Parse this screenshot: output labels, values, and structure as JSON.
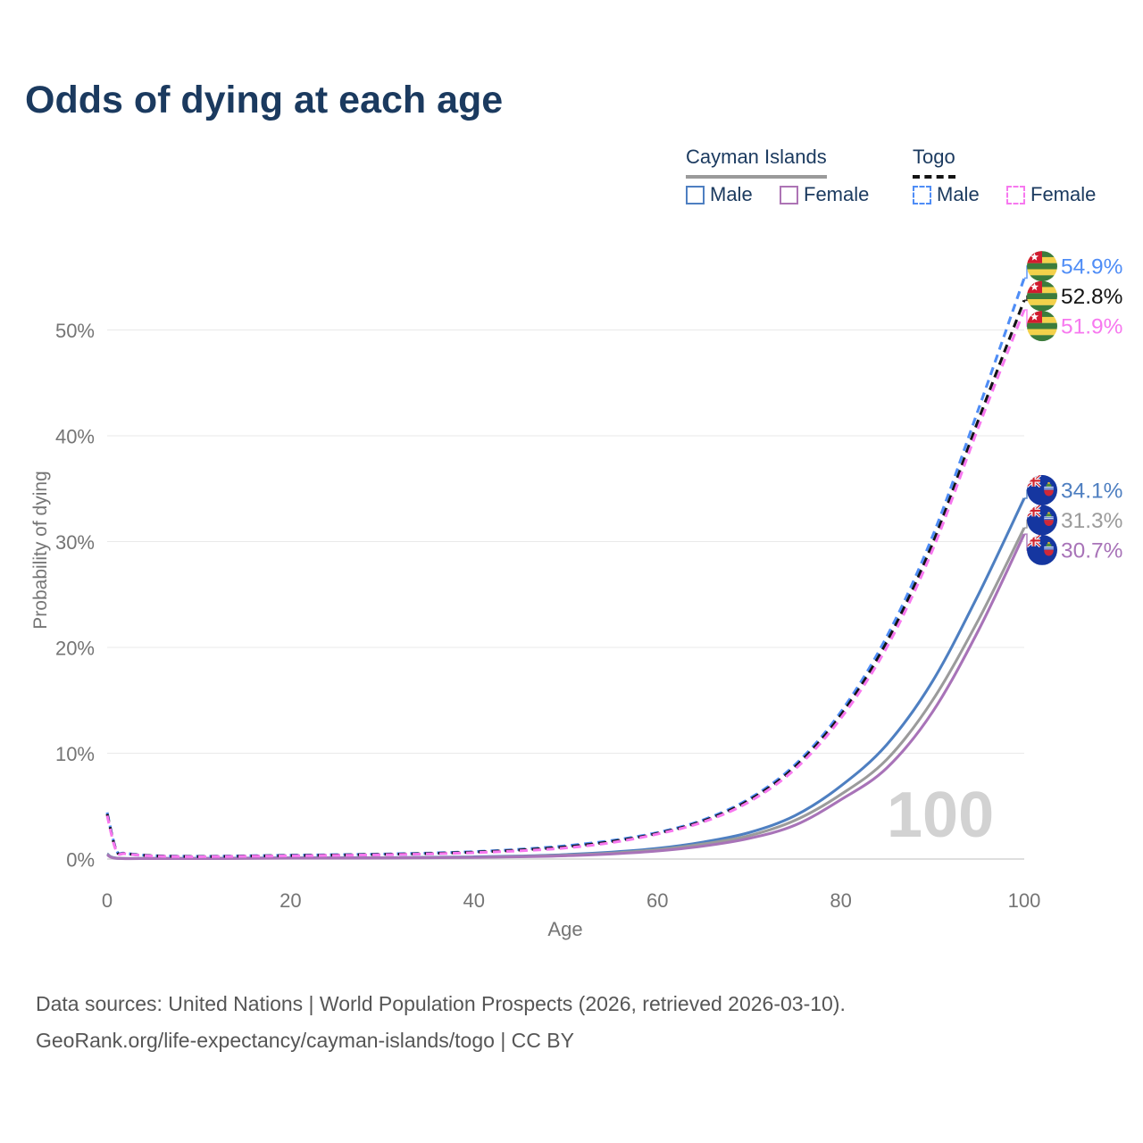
{
  "page": {
    "title": "Odds of dying at each age",
    "watermark": "100",
    "footer_line1": "Data sources: United Nations | World Population Prospects (2026, retrieved 2026-03-10).",
    "footer_line2": "GeoRank.org/life-expectancy/cayman-islands/togo | CC BY"
  },
  "colors": {
    "title_text": "#1b3a5f",
    "axis_text": "#757575",
    "grid": "#e9e9e9",
    "watermark": "#d2d2d2",
    "footer_text": "#565656"
  },
  "legend": {
    "groups": [
      {
        "label": "Cayman Islands",
        "underline": "solid",
        "underline_color": "#9a9a9a",
        "items": [
          {
            "label": "Male",
            "color": "#4e7fc1",
            "dashed": false
          },
          {
            "label": "Female",
            "color": "#ad74b5",
            "dashed": false
          }
        ]
      },
      {
        "label": "Togo",
        "underline": "dashed",
        "underline_color": "#141414",
        "items": [
          {
            "label": "Male",
            "color": "#4f8df6",
            "dashed": true
          },
          {
            "label": "Female",
            "color": "#f778ef",
            "dashed": true
          }
        ]
      }
    ]
  },
  "chart_data": {
    "type": "line",
    "title": "Odds of dying at each age",
    "xlabel": "Age",
    "ylabel": "Probability of dying",
    "xlim": [
      0,
      100
    ],
    "ylim": [
      0,
      57
    ],
    "x_ticks": [
      0,
      20,
      40,
      60,
      80,
      100
    ],
    "y_ticks": [
      0,
      10,
      20,
      30,
      40,
      50
    ],
    "y_tick_format": "%",
    "grid": "horizontal",
    "legend_position": "top-right",
    "age_indicator": "100",
    "series": [
      {
        "name": "Togo Male",
        "country": "Togo",
        "sex": "Male",
        "color": "#4f8df6",
        "dashed": true,
        "flag_icon": "togo-flag-icon",
        "end_label": "54.9%",
        "end_value": 54.9,
        "points": [
          [
            0,
            4.4
          ],
          [
            1,
            0.85
          ],
          [
            2,
            0.55
          ],
          [
            5,
            0.32
          ],
          [
            10,
            0.26
          ],
          [
            15,
            0.3
          ],
          [
            20,
            0.36
          ],
          [
            25,
            0.41
          ],
          [
            30,
            0.47
          ],
          [
            35,
            0.56
          ],
          [
            40,
            0.7
          ],
          [
            45,
            0.92
          ],
          [
            50,
            1.25
          ],
          [
            55,
            1.75
          ],
          [
            60,
            2.5
          ],
          [
            65,
            3.7
          ],
          [
            70,
            5.7
          ],
          [
            75,
            8.9
          ],
          [
            80,
            13.9
          ],
          [
            85,
            21.0
          ],
          [
            90,
            30.5
          ],
          [
            95,
            42.5
          ],
          [
            100,
            54.9
          ]
        ]
      },
      {
        "name": "Togo Both sexes",
        "country": "Togo",
        "sex": "Both",
        "color": "#141414",
        "dashed": true,
        "flag_icon": "togo-flag-icon",
        "end_label": "52.8%",
        "end_value": 52.8,
        "points": [
          [
            0,
            4.25
          ],
          [
            1,
            0.8
          ],
          [
            2,
            0.52
          ],
          [
            5,
            0.3
          ],
          [
            10,
            0.24
          ],
          [
            15,
            0.28
          ],
          [
            20,
            0.33
          ],
          [
            25,
            0.38
          ],
          [
            30,
            0.44
          ],
          [
            35,
            0.52
          ],
          [
            40,
            0.65
          ],
          [
            45,
            0.85
          ],
          [
            50,
            1.15
          ],
          [
            55,
            1.65
          ],
          [
            60,
            2.42
          ],
          [
            65,
            3.6
          ],
          [
            70,
            5.55
          ],
          [
            75,
            8.7
          ],
          [
            80,
            13.6
          ],
          [
            85,
            20.5
          ],
          [
            90,
            29.8
          ],
          [
            95,
            41.5
          ],
          [
            100,
            52.8
          ]
        ]
      },
      {
        "name": "Togo Female",
        "country": "Togo",
        "sex": "Female",
        "color": "#f778ef",
        "dashed": true,
        "flag_icon": "togo-flag-icon",
        "end_label": "51.9%",
        "end_value": 51.9,
        "points": [
          [
            0,
            4.1
          ],
          [
            1,
            0.75
          ],
          [
            2,
            0.5
          ],
          [
            5,
            0.28
          ],
          [
            10,
            0.22
          ],
          [
            15,
            0.26
          ],
          [
            20,
            0.3
          ],
          [
            25,
            0.35
          ],
          [
            30,
            0.4
          ],
          [
            35,
            0.48
          ],
          [
            40,
            0.6
          ],
          [
            45,
            0.78
          ],
          [
            50,
            1.05
          ],
          [
            55,
            1.55
          ],
          [
            60,
            2.36
          ],
          [
            65,
            3.5
          ],
          [
            70,
            5.4
          ],
          [
            75,
            8.5
          ],
          [
            80,
            13.3
          ],
          [
            85,
            20.0
          ],
          [
            90,
            29.2
          ],
          [
            95,
            40.8
          ],
          [
            100,
            51.9
          ]
        ]
      },
      {
        "name": "Cayman Islands Male",
        "country": "Cayman Islands",
        "sex": "Male",
        "color": "#4e7fc1",
        "dashed": false,
        "flag_icon": "cayman-islands-flag-icon",
        "end_label": "34.1%",
        "end_value": 34.1,
        "points": [
          [
            0,
            0.5
          ],
          [
            1,
            0.09
          ],
          [
            5,
            0.06
          ],
          [
            10,
            0.06
          ],
          [
            15,
            0.09
          ],
          [
            20,
            0.11
          ],
          [
            25,
            0.12
          ],
          [
            30,
            0.13
          ],
          [
            35,
            0.16
          ],
          [
            40,
            0.2
          ],
          [
            45,
            0.28
          ],
          [
            50,
            0.42
          ],
          [
            55,
            0.65
          ],
          [
            60,
            1.0
          ],
          [
            65,
            1.6
          ],
          [
            70,
            2.5
          ],
          [
            75,
            4.1
          ],
          [
            80,
            6.9
          ],
          [
            85,
            10.8
          ],
          [
            90,
            16.8
          ],
          [
            95,
            25.0
          ],
          [
            100,
            34.1
          ]
        ]
      },
      {
        "name": "Cayman Islands Both sexes",
        "country": "Cayman Islands",
        "sex": "Both",
        "color": "#9b9b9b",
        "dashed": false,
        "flag_icon": "cayman-islands-flag-icon",
        "end_label": "31.3%",
        "end_value": 31.3,
        "points": [
          [
            0,
            0.45
          ],
          [
            1,
            0.08
          ],
          [
            5,
            0.05
          ],
          [
            10,
            0.05
          ],
          [
            15,
            0.08
          ],
          [
            20,
            0.1
          ],
          [
            25,
            0.1
          ],
          [
            30,
            0.11
          ],
          [
            35,
            0.14
          ],
          [
            40,
            0.17
          ],
          [
            45,
            0.24
          ],
          [
            50,
            0.36
          ],
          [
            55,
            0.56
          ],
          [
            60,
            0.88
          ],
          [
            65,
            1.42
          ],
          [
            70,
            2.2
          ],
          [
            75,
            3.65
          ],
          [
            80,
            6.1
          ],
          [
            85,
            9.4
          ],
          [
            90,
            15.0
          ],
          [
            95,
            22.6
          ],
          [
            100,
            31.3
          ]
        ]
      },
      {
        "name": "Cayman Islands Female",
        "country": "Cayman Islands",
        "sex": "Female",
        "color": "#a873b8",
        "dashed": false,
        "flag_icon": "cayman-islands-flag-icon",
        "end_label": "30.7%",
        "end_value": 30.7,
        "points": [
          [
            0,
            0.4
          ],
          [
            1,
            0.07
          ],
          [
            5,
            0.05
          ],
          [
            10,
            0.05
          ],
          [
            15,
            0.07
          ],
          [
            20,
            0.09
          ],
          [
            25,
            0.09
          ],
          [
            30,
            0.1
          ],
          [
            35,
            0.12
          ],
          [
            40,
            0.15
          ],
          [
            45,
            0.21
          ],
          [
            50,
            0.31
          ],
          [
            55,
            0.48
          ],
          [
            60,
            0.76
          ],
          [
            65,
            1.22
          ],
          [
            70,
            1.95
          ],
          [
            75,
            3.2
          ],
          [
            80,
            5.6
          ],
          [
            85,
            8.6
          ],
          [
            90,
            13.9
          ],
          [
            95,
            21.6
          ],
          [
            100,
            30.7
          ]
        ]
      }
    ]
  }
}
